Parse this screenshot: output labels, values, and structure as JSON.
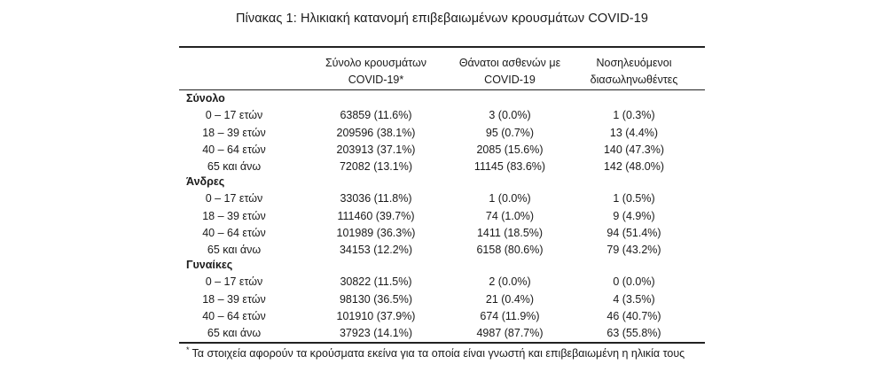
{
  "title": "Πίνακας 1: Ηλικιακή κατανομή επιβεβαιωμένων κρουσμάτων COVID-19",
  "columns": [
    {
      "line1": "Σύνολο κρουσμάτων",
      "line2": "COVID-19*"
    },
    {
      "line1": "Θάνατοι ασθενών με",
      "line2": "COVID-19"
    },
    {
      "line1": "Νοσηλευόμενοι",
      "line2": "διασωληνωθέντες"
    }
  ],
  "sections": [
    {
      "title": "Σύνολο",
      "rows": [
        {
          "label": "0 – 17 ετών",
          "cases": "63859 (11.6%)",
          "deaths": "3 (0.0%)",
          "intubated": "1 (0.3%)"
        },
        {
          "label": "18 – 39 ετών",
          "cases": "209596 (38.1%)",
          "deaths": "95 (0.7%)",
          "intubated": "13 (4.4%)"
        },
        {
          "label": "40 – 64 ετών",
          "cases": "203913 (37.1%)",
          "deaths": "2085 (15.6%)",
          "intubated": "140 (47.3%)"
        },
        {
          "label": "65 και άνω",
          "cases": "72082 (13.1%)",
          "deaths": "11145 (83.6%)",
          "intubated": "142 (48.0%)"
        }
      ]
    },
    {
      "title": "Άνδρες",
      "rows": [
        {
          "label": "0 – 17 ετών",
          "cases": "33036 (11.8%)",
          "deaths": "1 (0.0%)",
          "intubated": "1 (0.5%)"
        },
        {
          "label": "18 – 39 ετών",
          "cases": "111460 (39.7%)",
          "deaths": "74 (1.0%)",
          "intubated": "9 (4.9%)"
        },
        {
          "label": "40 – 64 ετών",
          "cases": "101989 (36.3%)",
          "deaths": "1411 (18.5%)",
          "intubated": "94 (51.4%)"
        },
        {
          "label": "65 και άνω",
          "cases": "34153 (12.2%)",
          "deaths": "6158 (80.6%)",
          "intubated": "79 (43.2%)"
        }
      ]
    },
    {
      "title": "Γυναίκες",
      "rows": [
        {
          "label": "0 – 17 ετών",
          "cases": "30822 (11.5%)",
          "deaths": "2 (0.0%)",
          "intubated": "0 (0.0%)"
        },
        {
          "label": "18 – 39 ετών",
          "cases": "98130 (36.5%)",
          "deaths": "21 (0.4%)",
          "intubated": "4 (3.5%)"
        },
        {
          "label": "40 – 64 ετών",
          "cases": "101910 (37.9%)",
          "deaths": "674 (11.9%)",
          "intubated": "46 (40.7%)"
        },
        {
          "label": "65 και άνω",
          "cases": "37923 (14.1%)",
          "deaths": "4987 (87.7%)",
          "intubated": "63 (55.8%)"
        }
      ]
    }
  ],
  "footnote": {
    "marker": "*",
    "text": "Τα στοιχεία αφορούν τα κρούσματα εκείνα για τα οποία είναι γνωστή και επιβεβαιωμένη η ηλικία τους"
  }
}
